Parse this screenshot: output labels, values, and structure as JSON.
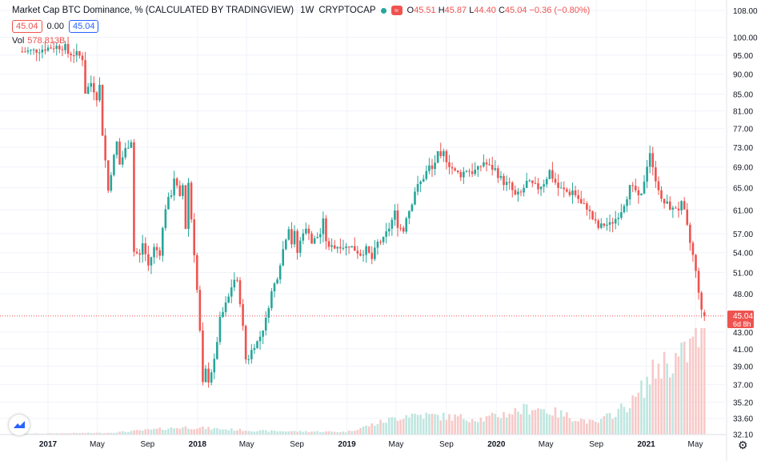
{
  "header": {
    "title": "Market Cap BTC Dominance, % (CALCULATED BY TRADINGVIEW)",
    "timeframe": "1W",
    "exchange": "CRYPTOCAP",
    "flag_symbol": "≈",
    "open_label": "O",
    "open": "45.51",
    "high_label": "H",
    "high": "45.87",
    "low_label": "L",
    "low": "44.40",
    "close_label": "C",
    "close": "45.04",
    "change": "−0.36 (−0.80%)"
  },
  "legend_row": {
    "price_box": "45.04",
    "zero": "0.00",
    "blue_box": "45.04"
  },
  "volume": {
    "label": "Vol",
    "value": "578.813B"
  },
  "price_axis": {
    "ticks": [
      "108.00",
      "100.00",
      "95.00",
      "90.00",
      "85.00",
      "81.00",
      "77.00",
      "73.00",
      "69.00",
      "65.00",
      "61.00",
      "57.00",
      "54.00",
      "51.00",
      "48.00",
      "45.04",
      "43.00",
      "41.00",
      "39.00",
      "37.00",
      "35.20",
      "33.60",
      "32.10"
    ]
  },
  "last_price": {
    "value": "45.04",
    "countdown": "6d 8h"
  },
  "colors": {
    "up": "#26a69a",
    "down": "#ef5350",
    "up_volume": "#bfe6df",
    "down_volume": "#f7c9c8",
    "grid": "#f0f3fa"
  },
  "chart_data": {
    "type": "candlestick",
    "title": "Market Cap BTC Dominance, % (CALCULATED BY TRADINGVIEW)",
    "timeframe": "1W",
    "x_ticks": [
      "2017",
      "May",
      "Sep",
      "2018",
      "May",
      "Sep",
      "2019",
      "May",
      "Sep",
      "2020",
      "May",
      "Sep",
      "2021",
      "May"
    ],
    "close_path": [
      [
        "2016-10-30",
        96.0
      ],
      [
        "2016-12-04",
        96.3
      ],
      [
        "2016-12-25",
        96.9
      ],
      [
        "2017-01-22",
        97.4
      ],
      [
        "2017-02-12",
        97.2
      ],
      [
        "2017-02-19",
        95.5
      ],
      [
        "2017-03-12",
        95.3
      ],
      [
        "2017-03-26",
        94.2
      ],
      [
        "2017-04-02",
        85.5
      ],
      [
        "2017-04-16",
        87.8
      ],
      [
        "2017-04-30",
        84.3
      ],
      [
        "2017-05-07",
        87.0
      ],
      [
        "2017-05-14",
        76.0
      ],
      [
        "2017-05-28",
        64.5
      ],
      [
        "2017-06-04",
        68.0
      ],
      [
        "2017-06-18",
        74.0
      ],
      [
        "2017-06-25",
        69.5
      ],
      [
        "2017-07-09",
        72.5
      ],
      [
        "2017-07-23",
        74.5
      ],
      [
        "2017-07-30",
        54.2
      ],
      [
        "2017-08-13",
        53.5
      ],
      [
        "2017-08-20",
        55.5
      ],
      [
        "2017-09-03",
        52.0
      ],
      [
        "2017-09-17",
        54.7
      ],
      [
        "2017-10-01",
        54.0
      ],
      [
        "2017-10-15",
        61.5
      ],
      [
        "2017-10-29",
        64.0
      ],
      [
        "2017-11-05",
        67.0
      ],
      [
        "2017-11-19",
        63.0
      ],
      [
        "2017-11-26",
        65.5
      ],
      [
        "2017-12-03",
        58.0
      ],
      [
        "2017-12-10",
        66.0
      ],
      [
        "2017-12-17",
        59.5
      ],
      [
        "2017-12-31",
        48.5
      ],
      [
        "2018-01-07",
        43.0
      ],
      [
        "2018-01-14",
        37.0
      ],
      [
        "2018-01-21",
        38.5
      ],
      [
        "2018-01-28",
        37.5
      ],
      [
        "2018-02-11",
        39.5
      ],
      [
        "2018-02-25",
        44.5
      ],
      [
        "2018-03-04",
        45.5
      ],
      [
        "2018-03-18",
        47.5
      ],
      [
        "2018-03-25",
        49.0
      ],
      [
        "2018-04-01",
        50.0
      ],
      [
        "2018-04-08",
        49.5
      ],
      [
        "2018-04-15",
        47.0
      ],
      [
        "2018-04-22",
        43.5
      ],
      [
        "2018-04-29",
        39.8
      ],
      [
        "2018-05-06",
        40.0
      ],
      [
        "2018-05-13",
        40.8
      ],
      [
        "2018-05-20",
        41.5
      ],
      [
        "2018-05-27",
        41.8
      ],
      [
        "2018-06-03",
        42.5
      ],
      [
        "2018-06-17",
        44.5
      ],
      [
        "2018-06-24",
        46.5
      ],
      [
        "2018-07-01",
        48.2
      ],
      [
        "2018-07-15",
        50.5
      ],
      [
        "2018-07-22",
        52.5
      ],
      [
        "2018-07-29",
        54.5
      ],
      [
        "2018-08-05",
        56.5
      ],
      [
        "2018-08-12",
        58.2
      ],
      [
        "2018-08-19",
        55.5
      ],
      [
        "2018-08-26",
        57.0
      ],
      [
        "2018-09-02",
        54.0
      ],
      [
        "2018-09-16",
        57.5
      ],
      [
        "2018-09-30",
        57.5
      ],
      [
        "2018-10-07",
        55.5
      ],
      [
        "2018-10-28",
        57.0
      ],
      [
        "2018-11-04",
        59.0
      ],
      [
        "2018-11-11",
        56.0
      ],
      [
        "2018-11-18",
        54.5
      ],
      [
        "2018-11-25",
        55.5
      ],
      [
        "2018-12-02",
        54.8
      ],
      [
        "2018-12-16",
        55.2
      ],
      [
        "2018-12-23",
        55.0
      ],
      [
        "2018-12-30",
        54.8
      ],
      [
        "2019-01-06",
        55.2
      ],
      [
        "2019-01-20",
        54.5
      ],
      [
        "2019-02-03",
        53.8
      ],
      [
        "2019-02-17",
        54.5
      ],
      [
        "2019-03-03",
        53.0
      ],
      [
        "2019-03-17",
        55.5
      ],
      [
        "2019-03-31",
        56.0
      ],
      [
        "2019-04-14",
        58.0
      ],
      [
        "2019-04-28",
        60.5
      ],
      [
        "2019-05-05",
        58.5
      ],
      [
        "2019-05-19",
        57.5
      ],
      [
        "2019-05-26",
        60.0
      ],
      [
        "2019-06-02",
        61.0
      ],
      [
        "2019-06-09",
        62.5
      ],
      [
        "2019-06-16",
        64.5
      ],
      [
        "2019-06-30",
        66.0
      ],
      [
        "2019-07-14",
        68.0
      ],
      [
        "2019-07-21",
        69.0
      ],
      [
        "2019-07-28",
        68.5
      ],
      [
        "2019-08-04",
        70.0
      ],
      [
        "2019-08-11",
        71.5
      ],
      [
        "2019-08-18",
        70.5
      ],
      [
        "2019-08-25",
        71.8
      ],
      [
        "2019-09-01",
        70.5
      ],
      [
        "2019-09-08",
        69.5
      ],
      [
        "2019-09-22",
        68.0
      ],
      [
        "2019-10-06",
        67.5
      ],
      [
        "2019-10-20",
        68.5
      ],
      [
        "2019-11-03",
        68.0
      ],
      [
        "2019-11-17",
        68.5
      ],
      [
        "2019-12-01",
        70.0
      ],
      [
        "2019-12-15",
        69.0
      ],
      [
        "2019-12-29",
        68.5
      ],
      [
        "2020-01-05",
        67.5
      ],
      [
        "2020-01-19",
        66.0
      ],
      [
        "2020-02-02",
        65.5
      ],
      [
        "2020-02-16",
        63.5
      ],
      [
        "2020-03-01",
        64.0
      ],
      [
        "2020-03-15",
        66.0
      ],
      [
        "2020-03-29",
        65.5
      ],
      [
        "2020-04-12",
        65.0
      ],
      [
        "2020-04-26",
        66.0
      ],
      [
        "2020-05-03",
        67.0
      ],
      [
        "2020-05-10",
        68.2
      ],
      [
        "2020-05-17",
        67.0
      ],
      [
        "2020-05-31",
        65.0
      ],
      [
        "2020-06-14",
        64.5
      ],
      [
        "2020-06-28",
        64.0
      ],
      [
        "2020-07-05",
        64.5
      ],
      [
        "2020-07-19",
        63.0
      ],
      [
        "2020-07-26",
        62.0
      ],
      [
        "2020-08-09",
        61.5
      ],
      [
        "2020-08-23",
        59.5
      ],
      [
        "2020-09-06",
        58.0
      ],
      [
        "2020-09-20",
        58.5
      ],
      [
        "2020-10-04",
        58.5
      ],
      [
        "2020-10-18",
        59.5
      ],
      [
        "2020-11-01",
        61.0
      ],
      [
        "2020-11-15",
        63.5
      ],
      [
        "2020-11-22",
        65.0
      ],
      [
        "2020-12-06",
        64.5
      ],
      [
        "2020-12-13",
        63.0
      ],
      [
        "2020-12-20",
        63.5
      ],
      [
        "2020-12-27",
        66.5
      ],
      [
        "2021-01-03",
        69.5
      ],
      [
        "2021-01-10",
        72.0
      ],
      [
        "2021-01-17",
        68.5
      ],
      [
        "2021-01-31",
        65.0
      ],
      [
        "2021-02-07",
        62.5
      ],
      [
        "2021-02-21",
        62.0
      ],
      [
        "2021-03-07",
        61.0
      ],
      [
        "2021-03-14",
        61.5
      ],
      [
        "2021-03-21",
        61.2
      ],
      [
        "2021-03-28",
        62.0
      ],
      [
        "2021-04-04",
        60.5
      ],
      [
        "2021-04-11",
        58.0
      ],
      [
        "2021-04-18",
        55.5
      ],
      [
        "2021-04-25",
        53.5
      ],
      [
        "2021-05-02",
        51.0
      ],
      [
        "2021-05-09",
        48.5
      ],
      [
        "2021-05-16",
        45.5
      ],
      [
        "2021-05-23",
        45.04
      ]
    ],
    "last": {
      "open": 45.51,
      "high": 45.87,
      "low": 44.4,
      "close": 45.04
    },
    "volume_trend_billions": [
      [
        "2016-11-01",
        5
      ],
      [
        "2017-06-01",
        10
      ],
      [
        "2017-12-01",
        40
      ],
      [
        "2018-06-01",
        20
      ],
      [
        "2019-01-01",
        15
      ],
      [
        "2019-06-01",
        110
      ],
      [
        "2019-12-01",
        85
      ],
      [
        "2020-04-01",
        150
      ],
      [
        "2020-09-01",
        60
      ],
      [
        "2020-12-01",
        180
      ],
      [
        "2021-02-01",
        380
      ],
      [
        "2021-04-01",
        420
      ],
      [
        "2021-05-23",
        579
      ]
    ],
    "volume_last_billions": 578.813
  }
}
